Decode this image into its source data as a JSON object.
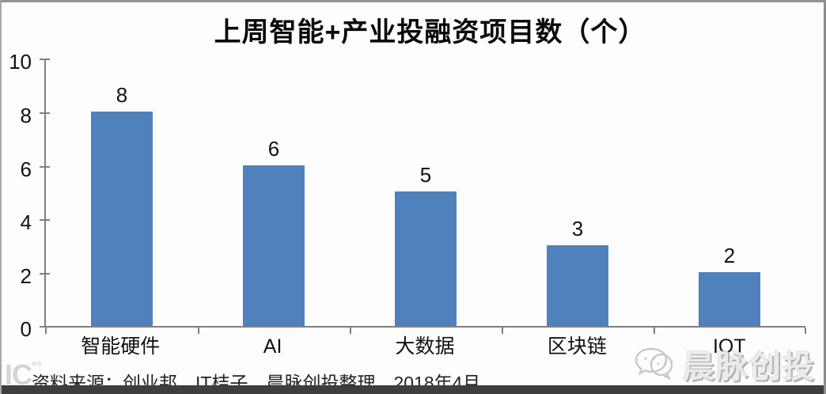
{
  "chart_data": {
    "type": "bar",
    "title": "上周智能+产业投融资项目数（个）",
    "categories": [
      "智能硬件",
      "AI",
      "大数据",
      "区块链",
      "IOT"
    ],
    "values": [
      8,
      6,
      5,
      3,
      2
    ],
    "yticks": [
      0,
      2,
      4,
      6,
      8,
      10
    ],
    "ylim": [
      0,
      10
    ],
    "xlabel": "",
    "ylabel": "",
    "grid": false,
    "legend_position": "none",
    "value_labels_shown": true,
    "bar_color": "#4f81bd",
    "axis_color": "#808080"
  },
  "footer": {
    "source_note": "资料来源：创业邦，IT桔子，晨脉创投整理，2018年4月"
  },
  "watermarks": {
    "left_logo_text": "IC",
    "left_logo_dots": "°°",
    "right_text": "晨脉创投",
    "right_icon": "chat-bubbles-icon",
    "color": "#c9c9c9"
  }
}
